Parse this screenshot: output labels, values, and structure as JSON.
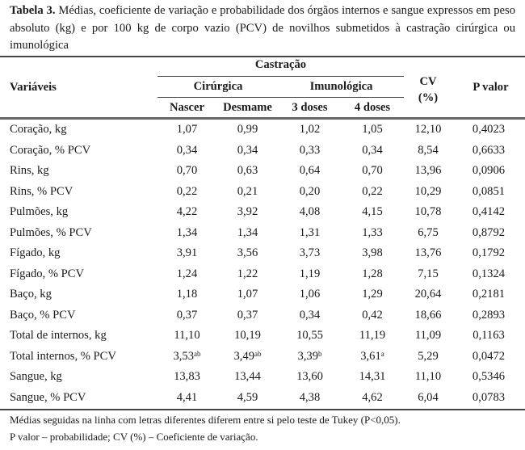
{
  "caption": {
    "label": "Tabela 3.",
    "text": " Médias, coeficiente de variação e probabilidade dos órgãos internos e sangue expressos em peso absoluto (kg) e por 100 kg de corpo vazio (PCV) de novilhos submetidos à castração cirúrgica ou imunológica"
  },
  "header": {
    "variables": "Variáveis",
    "castration": "Castração",
    "surgical": "Cirúrgica",
    "immunological": "Imunológica",
    "cv_line1": "CV",
    "cv_line2": "(%)",
    "p_value": "P valor",
    "columns": [
      "Nascer",
      "Desmame",
      "3 doses",
      "4 doses"
    ]
  },
  "rows": [
    {
      "var": "Coração, kg",
      "vals": [
        "1,07",
        "0,99",
        "1,02",
        "1,05"
      ],
      "sup": [
        "",
        "",
        "",
        ""
      ],
      "cv": "12,10",
      "p": "0,4023"
    },
    {
      "var": "Coração, % PCV",
      "vals": [
        "0,34",
        "0,34",
        "0,33",
        "0,34"
      ],
      "sup": [
        "",
        "",
        "",
        ""
      ],
      "cv": "8,54",
      "p": "0,6633"
    },
    {
      "var": "Rins, kg",
      "vals": [
        "0,70",
        "0,63",
        "0,64",
        "0,70"
      ],
      "sup": [
        "",
        "",
        "",
        ""
      ],
      "cv": "13,96",
      "p": "0,0906"
    },
    {
      "var": "Rins, % PCV",
      "vals": [
        "0,22",
        "0,21",
        "0,20",
        "0,22"
      ],
      "sup": [
        "",
        "",
        "",
        ""
      ],
      "cv": "10,29",
      "p": "0,0851"
    },
    {
      "var": "Pulmões, kg",
      "vals": [
        "4,22",
        "3,92",
        "4,08",
        "4,15"
      ],
      "sup": [
        "",
        "",
        "",
        ""
      ],
      "cv": "10,78",
      "p": "0,4142"
    },
    {
      "var": "Pulmões, % PCV",
      "vals": [
        "1,34",
        "1,34",
        "1,31",
        "1,33"
      ],
      "sup": [
        "",
        "",
        "",
        ""
      ],
      "cv": "6,75",
      "p": "0,8792"
    },
    {
      "var": "Fígado, kg",
      "vals": [
        "3,91",
        "3,56",
        "3,73",
        "3,98"
      ],
      "sup": [
        "",
        "",
        "",
        ""
      ],
      "cv": "13,76",
      "p": "0,1792"
    },
    {
      "var": "Fígado, % PCV",
      "vals": [
        "1,24",
        "1,22",
        "1,19",
        "1,28"
      ],
      "sup": [
        "",
        "",
        "",
        ""
      ],
      "cv": "7,15",
      "p": "0,1324"
    },
    {
      "var": "Baço, kg",
      "vals": [
        "1,18",
        "1,07",
        "1,06",
        "1,29"
      ],
      "sup": [
        "",
        "",
        "",
        ""
      ],
      "cv": "20,64",
      "p": "0,2181"
    },
    {
      "var": "Baço, % PCV",
      "vals": [
        "0,37",
        "0,37",
        "0,34",
        "0,42"
      ],
      "sup": [
        "",
        "",
        "",
        ""
      ],
      "cv": "18,66",
      "p": "0,2893"
    },
    {
      "var": "Total de internos, kg",
      "vals": [
        "11,10",
        "10,19",
        "10,55",
        "11,19"
      ],
      "sup": [
        "",
        "",
        "",
        ""
      ],
      "cv": "11,09",
      "p": "0,1163"
    },
    {
      "var": "Total internos, % PCV",
      "vals": [
        "3,53",
        "3,49",
        "3,39",
        "3,61"
      ],
      "sup": [
        "ab",
        "ab",
        "b",
        "a"
      ],
      "cv": "5,29",
      "p": "0,0472"
    },
    {
      "var": "Sangue, kg",
      "vals": [
        "13,83",
        "13,44",
        "13,60",
        "14,31"
      ],
      "sup": [
        "",
        "",
        "",
        ""
      ],
      "cv": "11,10",
      "p": "0,5346"
    },
    {
      "var": "Sangue, % PCV",
      "vals": [
        "4,41",
        "4,59",
        "4,38",
        "4,62"
      ],
      "sup": [
        "",
        "",
        "",
        ""
      ],
      "cv": "6,04",
      "p": "0,0783"
    }
  ],
  "footnotes": [
    "Médias seguidas na linha com letras diferentes diferem entre si pelo teste de Tukey (P<0,05).",
    "P valor – probabilidade; CV (%) – Coeficiente de variação."
  ]
}
